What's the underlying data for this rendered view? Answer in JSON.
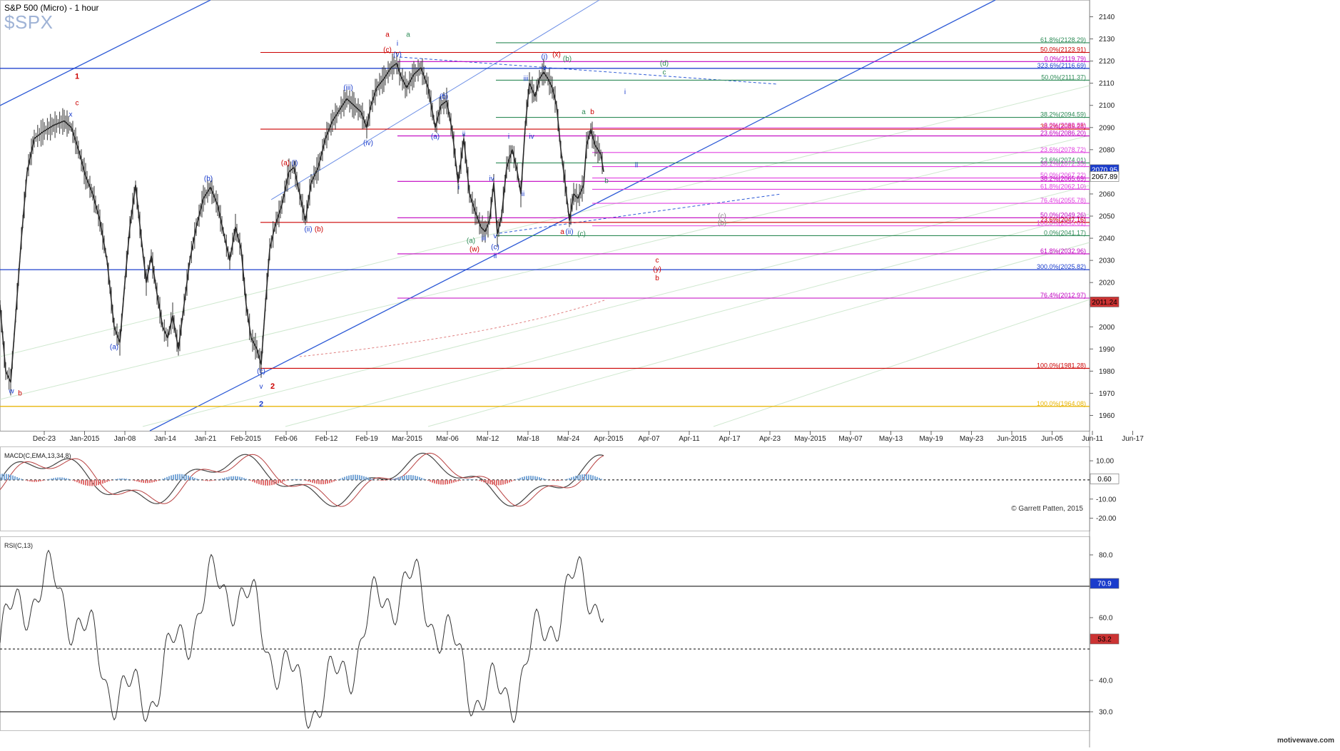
{
  "header": {
    "title": "S&P 500 (Micro) - 1 hour",
    "symbol": "$SPX",
    "credit": "© Garrett Patten, 2015",
    "brand": "motivewave.com"
  },
  "chart_data": [
    {
      "type": "line",
      "name": "price-pane",
      "title": "S&P 500 (Micro) - 1 hour",
      "ylim": [
        1955,
        2145
      ],
      "y_ticks": [
        1960,
        1970,
        1980,
        1990,
        2000,
        2010,
        2020,
        2030,
        2040,
        2050,
        2060,
        2070,
        2080,
        2090,
        2100,
        2110,
        2120,
        2130,
        2140
      ],
      "x_tick_labels": [
        "Dec-23",
        "Jan-2015",
        "Jan-08",
        "Jan-14",
        "Jan-21",
        "Feb-2015",
        "Feb-06",
        "Feb-12",
        "Feb-19",
        "Mar-2015",
        "Mar-06",
        "Mar-12",
        "Mar-18",
        "Mar-24",
        "Apr-2015",
        "Apr-07",
        "Apr-11",
        "Apr-17",
        "Apr-23",
        "May-2015",
        "May-07",
        "May-13",
        "May-19",
        "May-23",
        "Jun-2015",
        "Jun-05",
        "Jun-11",
        "Jun-17"
      ],
      "price_path": [
        [
          0,
          2010
        ],
        [
          8,
          1980
        ],
        [
          15,
          1975
        ],
        [
          22,
          2005
        ],
        [
          30,
          2040
        ],
        [
          38,
          2070
        ],
        [
          48,
          2085
        ],
        [
          60,
          2088
        ],
        [
          75,
          2091
        ],
        [
          90,
          2093
        ],
        [
          100,
          2090
        ],
        [
          110,
          2080
        ],
        [
          120,
          2068
        ],
        [
          130,
          2060
        ],
        [
          140,
          2048
        ],
        [
          150,
          2030
        ],
        [
          160,
          2000
        ],
        [
          168,
          1993
        ],
        [
          175,
          2020
        ],
        [
          182,
          2045
        ],
        [
          190,
          2064
        ],
        [
          198,
          2040
        ],
        [
          205,
          2020
        ],
        [
          212,
          2032
        ],
        [
          220,
          2015
        ],
        [
          228,
          2000
        ],
        [
          235,
          1995
        ],
        [
          242,
          2005
        ],
        [
          250,
          1990
        ],
        [
          258,
          2010
        ],
        [
          266,
          2030
        ],
        [
          275,
          2045
        ],
        [
          285,
          2058
        ],
        [
          295,
          2063
        ],
        [
          305,
          2055
        ],
        [
          315,
          2040
        ],
        [
          322,
          2030
        ],
        [
          330,
          2045
        ],
        [
          338,
          2035
        ],
        [
          345,
          2010
        ],
        [
          352,
          1995
        ],
        [
          360,
          1990
        ],
        [
          366,
          1983
        ],
        [
          372,
          2010
        ],
        [
          378,
          2035
        ],
        [
          385,
          2045
        ],
        [
          395,
          2055
        ],
        [
          405,
          2070
        ],
        [
          412,
          2072
        ],
        [
          420,
          2060
        ],
        [
          428,
          2048
        ],
        [
          436,
          2065
        ],
        [
          446,
          2072
        ],
        [
          456,
          2085
        ],
        [
          466,
          2093
        ],
        [
          476,
          2098
        ],
        [
          486,
          2103
        ],
        [
          496,
          2100
        ],
        [
          506,
          2097
        ],
        [
          514,
          2090
        ],
        [
          520,
          2100
        ],
        [
          528,
          2108
        ],
        [
          538,
          2112
        ],
        [
          548,
          2117
        ],
        [
          556,
          2119
        ],
        [
          562,
          2113
        ],
        [
          570,
          2108
        ],
        [
          580,
          2114
        ],
        [
          590,
          2117
        ],
        [
          600,
          2108
        ],
        [
          610,
          2090
        ],
        [
          618,
          2100
        ],
        [
          626,
          2102
        ],
        [
          634,
          2088
        ],
        [
          642,
          2065
        ],
        [
          650,
          2085
        ],
        [
          658,
          2060
        ],
        [
          666,
          2052
        ],
        [
          674,
          2045
        ],
        [
          680,
          2043
        ],
        [
          686,
          2048
        ],
        [
          692,
          2065
        ],
        [
          697,
          2042
        ],
        [
          703,
          2050
        ],
        [
          710,
          2072
        ],
        [
          718,
          2080
        ],
        [
          725,
          2070
        ],
        [
          730,
          2060
        ],
        [
          736,
          2090
        ],
        [
          742,
          2110
        ],
        [
          750,
          2104
        ],
        [
          756,
          2112
        ],
        [
          762,
          2115
        ],
        [
          768,
          2112
        ],
        [
          774,
          2108
        ],
        [
          780,
          2100
        ],
        [
          786,
          2080
        ],
        [
          792,
          2065
        ],
        [
          798,
          2048
        ],
        [
          804,
          2060
        ],
        [
          810,
          2058
        ],
        [
          818,
          2064
        ],
        [
          822,
          2082
        ],
        [
          828,
          2089
        ],
        [
          834,
          2082
        ],
        [
          842,
          2078
        ],
        [
          846,
          2070
        ]
      ],
      "wave_labels": [
        {
          "text": "1",
          "color": "#cc0000",
          "x": 108,
          "y": 2112
        },
        {
          "text": "c",
          "color": "#cc0000",
          "x": 108,
          "y": 2100
        },
        {
          "text": "x",
          "color": "#1a3ccc",
          "x": 99,
          "y": 2095
        },
        {
          "text": "w",
          "color": "#1a3ccc",
          "x": 16,
          "y": 1970
        },
        {
          "text": "b",
          "color": "#cc0000",
          "x": 28,
          "y": 1969
        },
        {
          "text": "(a)",
          "color": "#1a3ccc",
          "x": 160,
          "y": 1990
        },
        {
          "text": "(b)",
          "color": "#1a3ccc",
          "x": 292,
          "y": 2066
        },
        {
          "text": "(c)",
          "color": "#1a3ccc",
          "x": 366,
          "y": 1979
        },
        {
          "text": "v",
          "color": "#1a3ccc",
          "x": 366,
          "y": 1972
        },
        {
          "text": "2",
          "color": "#1a3ccc",
          "x": 366,
          "y": 1964
        },
        {
          "text": "2",
          "color": "#cc0000",
          "x": 382,
          "y": 1972
        },
        {
          "text": "(a)",
          "color": "#cc0000",
          "x": 400,
          "y": 2073
        },
        {
          "text": "(i)",
          "color": "#1a3ccc",
          "x": 413,
          "y": 2073
        },
        {
          "text": "(ii)",
          "color": "#1a3ccc",
          "x": 432,
          "y": 2043
        },
        {
          "text": "(b)",
          "color": "#cc0000",
          "x": 447,
          "y": 2043
        },
        {
          "text": "(iii)",
          "color": "#1a3ccc",
          "x": 488,
          "y": 2107
        },
        {
          "text": "(iv)",
          "color": "#1a3ccc",
          "x": 516,
          "y": 2082
        },
        {
          "text": "a",
          "color": "#cc0000",
          "x": 543,
          "y": 2131
        },
        {
          "text": "a",
          "color": "#2e8b57",
          "x": 572,
          "y": 2131
        },
        {
          "text": "(c)",
          "color": "#cc0000",
          "x": 543,
          "y": 2124
        },
        {
          "text": "i",
          "color": "#1a3ccc",
          "x": 557,
          "y": 2127
        },
        {
          "text": "(v)",
          "color": "#1a3ccc",
          "x": 557,
          "y": 2122
        },
        {
          "text": "(b)",
          "color": "#1a3ccc",
          "x": 622,
          "y": 2103
        },
        {
          "text": "(a)",
          "color": "#1a3ccc",
          "x": 610,
          "y": 2085
        },
        {
          "text": "ii",
          "color": "#1a3ccc",
          "x": 650,
          "y": 2086
        },
        {
          "text": "i",
          "color": "#1a3ccc",
          "x": 643,
          "y": 2062
        },
        {
          "text": "(a)",
          "color": "#2e8b57",
          "x": 660,
          "y": 2038
        },
        {
          "text": "(w)",
          "color": "#cc0000",
          "x": 665,
          "y": 2034
        },
        {
          "text": "iii",
          "color": "#1a3ccc",
          "x": 678,
          "y": 2039
        },
        {
          "text": "iv",
          "color": "#1a3ccc",
          "x": 689,
          "y": 2066
        },
        {
          "text": "v",
          "color": "#1a3ccc",
          "x": 694,
          "y": 2040
        },
        {
          "text": "(c)",
          "color": "#1a3ccc",
          "x": 694,
          "y": 2035
        },
        {
          "text": "ii",
          "color": "#1a3ccc",
          "x": 694,
          "y": 2031
        },
        {
          "text": "i",
          "color": "#1a3ccc",
          "x": 713,
          "y": 2085
        },
        {
          "text": "ii",
          "color": "#1a3ccc",
          "x": 733,
          "y": 2059
        },
        {
          "text": "iii",
          "color": "#1a3ccc",
          "x": 737,
          "y": 2111
        },
        {
          "text": "iv",
          "color": "#1a3ccc",
          "x": 745,
          "y": 2085
        },
        {
          "text": "(i)",
          "color": "#1a3ccc",
          "x": 763,
          "y": 2121
        },
        {
          "text": "v",
          "color": "#1a3ccc",
          "x": 763,
          "y": 2116
        },
        {
          "text": "(x)",
          "color": "#cc0000",
          "x": 780,
          "y": 2122
        },
        {
          "text": "(b)",
          "color": "#2e8b57",
          "x": 795,
          "y": 2120
        },
        {
          "text": "a",
          "color": "#cc0000",
          "x": 788,
          "y": 2042
        },
        {
          "text": "(ii)",
          "color": "#1a3ccc",
          "x": 798,
          "y": 2042
        },
        {
          "text": "(c)",
          "color": "#2e8b57",
          "x": 815,
          "y": 2041
        },
        {
          "text": "a",
          "color": "#2e8b57",
          "x": 818,
          "y": 2096
        },
        {
          "text": "b",
          "color": "#cc0000",
          "x": 830,
          "y": 2096
        },
        {
          "text": "b",
          "color": "#2e8b57",
          "x": 850,
          "y": 2065
        },
        {
          "text": "i",
          "color": "#1a3ccc",
          "x": 876,
          "y": 2105
        },
        {
          "text": "ii",
          "color": "#1a3ccc",
          "x": 892,
          "y": 2072
        },
        {
          "text": "(d)",
          "color": "#2e8b57",
          "x": 931,
          "y": 2118
        },
        {
          "text": "c",
          "color": "#2e8b57",
          "x": 931,
          "y": 2114
        },
        {
          "text": "(c)",
          "color": "#8a8a8a",
          "x": 1012,
          "y": 2049
        },
        {
          "text": "(b)",
          "color": "#8a8a8a",
          "x": 1012,
          "y": 2046
        },
        {
          "text": "c",
          "color": "#cc0000",
          "x": 921,
          "y": 2029
        },
        {
          "text": "(y)",
          "color": "#cc0000",
          "x": 921,
          "y": 2025
        },
        {
          "text": "b",
          "color": "#cc0000",
          "x": 921,
          "y": 2021
        }
      ],
      "fib_levels": [
        {
          "label": "61.8%(2128.29)",
          "value": 2128.29,
          "color": "#2e8b57"
        },
        {
          "label": "50.0%(2123.91)",
          "value": 2123.91,
          "color": "#cc0000"
        },
        {
          "label": "0.0%(2119.79)",
          "value": 2119.79,
          "color": "#c000c0"
        },
        {
          "label": "323.6%(2116.69)",
          "value": 2116.69,
          "color": "#1a3ccc"
        },
        {
          "label": "50.0%(2111.37)",
          "value": 2111.37,
          "color": "#2e8b57"
        },
        {
          "label": "38.2%(2094.59)",
          "value": 2094.59,
          "color": "#2e8b57"
        },
        {
          "label": "38.2%(2089.28)",
          "value": 2089.28,
          "color": "#cc0000"
        },
        {
          "label": "0.0%(2089.85)",
          "value": 2089.85,
          "color": "#e040e0"
        },
        {
          "label": "23.6%(2086.20)",
          "value": 2086.2,
          "color": "#c000c0"
        },
        {
          "label": "23.6%(2078.72)",
          "value": 2078.72,
          "color": "#e040e0"
        },
        {
          "label": "23.6%(2074.01)",
          "value": 2074.01,
          "color": "#2e8b57"
        },
        {
          "label": "38.2%(2072.35)",
          "value": 2072.35,
          "color": "#e040e0"
        },
        {
          "label": "50.0%(2067.22)",
          "value": 2067.22,
          "color": "#e040e0"
        },
        {
          "label": "38.2%(2065.69)",
          "value": 2065.69,
          "color": "#c000c0"
        },
        {
          "label": "61.8%(2062.10)",
          "value": 2062.1,
          "color": "#e040e0"
        },
        {
          "label": "76.4%(2055.78)",
          "value": 2055.78,
          "color": "#e040e0"
        },
        {
          "label": "50.0%(2049.26)",
          "value": 2049.26,
          "color": "#c000c0"
        },
        {
          "label": "23.6%(2047.16)",
          "value": 2047.16,
          "color": "#cc0000"
        },
        {
          "label": "100.0%(2045.61)",
          "value": 2045.61,
          "color": "#e040e0"
        },
        {
          "label": "0.0%(2041.17)",
          "value": 2041.17,
          "color": "#2e8b57"
        },
        {
          "label": "61.8%(2032.96)",
          "value": 2032.96,
          "color": "#c000c0"
        },
        {
          "label": "300.0%(2025.82)",
          "value": 2025.82,
          "color": "#1a3ccc"
        },
        {
          "label": "76.4%(2012.97)",
          "value": 2012.97,
          "color": "#c000c0"
        },
        {
          "label": "100.0%(1981.28)",
          "value": 1981.28,
          "color": "#cc0000"
        },
        {
          "label": "100.0%(1964.08)",
          "value": 1964.08,
          "color": "#e8b400"
        }
      ],
      "price_tags": [
        {
          "label": "2070.95",
          "value": 2070.95,
          "color": "#1a3ccc",
          "text_color": "#ffffff"
        },
        {
          "label": "2067.89",
          "value": 2067.89,
          "color": "#ffffff",
          "text_color": "#000000"
        },
        {
          "label": "2011.24",
          "value": 2011.24,
          "color": "#cc3333",
          "text_color": "#000000"
        }
      ]
    },
    {
      "type": "line",
      "name": "macd-pane",
      "title": "MACD(C,EMA,13,34,8)",
      "ylim": [
        -25,
        16
      ],
      "y_ticks": [
        10.0,
        -10.0,
        -20.0
      ],
      "y_tick_labels": [
        "10.00",
        "-10.00",
        "-20.00"
      ],
      "current_value": 0.6,
      "current_label": "0.60"
    },
    {
      "type": "line",
      "name": "rsi-pane",
      "title": "RSI(C,13)",
      "ylim": [
        25,
        85
      ],
      "y_ticks": [
        80,
        60,
        40,
        30
      ],
      "y_tick_labels": [
        "80.0",
        "60.0",
        "40.0",
        "30.0"
      ],
      "reference_lines": [
        70,
        30
      ],
      "tags": [
        {
          "label": "70.9",
          "value": 70.9,
          "color": "#1a3ccc",
          "text_color": "#ffffff"
        },
        {
          "label": "53.2",
          "value": 53.2,
          "color": "#cc3333",
          "text_color": "#000000"
        }
      ]
    }
  ]
}
